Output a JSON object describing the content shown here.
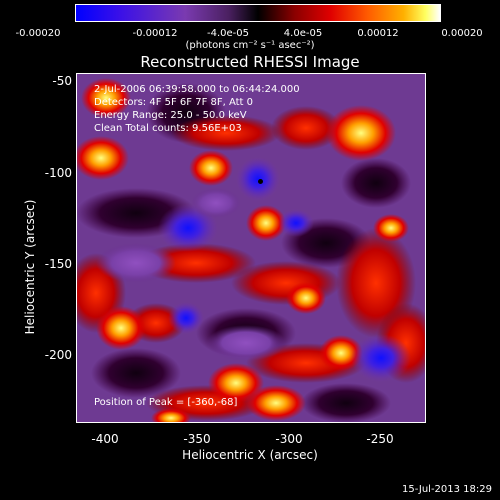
{
  "colorbar": {
    "ticks": [
      "-0.00020",
      "-0.00012",
      "-4.0e-05",
      "4.0e-05",
      "0.00012",
      "0.00020"
    ],
    "units_label": "(photons cm⁻² s⁻¹ asec⁻²)",
    "colors": [
      "#0000ff",
      "#4b00ff",
      "#7a3aa8",
      "#5a2a6a",
      "#000000",
      "#5a0000",
      "#c00000",
      "#ff3a00",
      "#ff9a00",
      "#ffe000",
      "#ffffff"
    ]
  },
  "plot": {
    "title": "Reconstructed RHESSI Image",
    "time_range": "2-Jul-2006 06:39:58.000 to 06:44:24.000",
    "detectors": "Detectors: 4F 5F 6F 7F 8F, Att 0",
    "energy_range": "Energy Range: 25.0 - 50.0 keV",
    "clean_info": "Clean     Total counts: 9.56E+03",
    "peak_position": "Position of Peak = [-360,-68]",
    "xlabel": "Heliocentric X (arcsec)",
    "ylabel": "Heliocentric Y (arcsec)",
    "xticks": [
      "-400",
      "-350",
      "-300",
      "-250"
    ],
    "yticks": [
      "-50",
      "-100",
      "-150",
      "-200"
    ]
  },
  "footer": {
    "date": "15-Jul-2013 18:29"
  }
}
